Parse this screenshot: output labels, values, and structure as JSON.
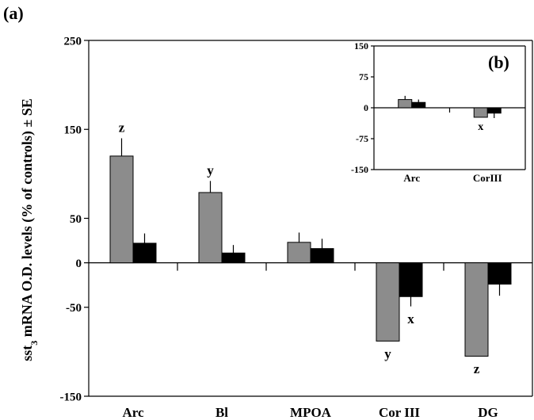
{
  "chart_data": [
    {
      "panel": "(a)",
      "type": "bar",
      "ylabel_prefix": "sst",
      "ylabel_sub": "3",
      "ylabel_rest": " mRNA O.D. levels (% of controls) ± SE",
      "ylim": [
        -150,
        250
      ],
      "yticks": [
        -150,
        -50,
        0,
        50,
        150,
        250
      ],
      "categories": [
        "Arc",
        "Bl",
        "MPOA",
        "Cor III",
        "DG"
      ],
      "series": [
        {
          "color": "#8c8c8c",
          "values": [
            120,
            79,
            23,
            -88,
            -105
          ],
          "errors": [
            20,
            13,
            11,
            0,
            0
          ]
        },
        {
          "color": "#000000",
          "values": [
            22,
            11,
            16,
            -38,
            -24
          ],
          "errors": [
            11,
            9,
            11,
            11,
            13
          ]
        }
      ],
      "annotations": [
        {
          "text": "z",
          "category": 0,
          "series": 0,
          "position": "above"
        },
        {
          "text": "y",
          "category": 1,
          "series": 0,
          "position": "above"
        },
        {
          "text": "x",
          "category": 3,
          "series": 1,
          "position": "below"
        },
        {
          "text": "y",
          "category": 3,
          "series": 0,
          "position": "below"
        },
        {
          "text": "z",
          "category": 4,
          "series": 0,
          "position": "below"
        }
      ],
      "grid": false
    },
    {
      "panel": "(b)",
      "type": "bar",
      "ylim": [
        -150,
        150
      ],
      "yticks": [
        -150,
        -75,
        0,
        75,
        150
      ],
      "categories": [
        "Arc",
        "CorIII"
      ],
      "series": [
        {
          "color": "#8c8c8c",
          "values": [
            20,
            -23
          ],
          "errors": [
            9,
            0
          ]
        },
        {
          "color": "#000000",
          "values": [
            13,
            -13
          ],
          "errors": [
            7,
            12
          ]
        }
      ],
      "annotations": [
        {
          "text": "x",
          "category": 1,
          "series": 0,
          "position": "below"
        }
      ],
      "legend": "none",
      "grid": false
    }
  ]
}
